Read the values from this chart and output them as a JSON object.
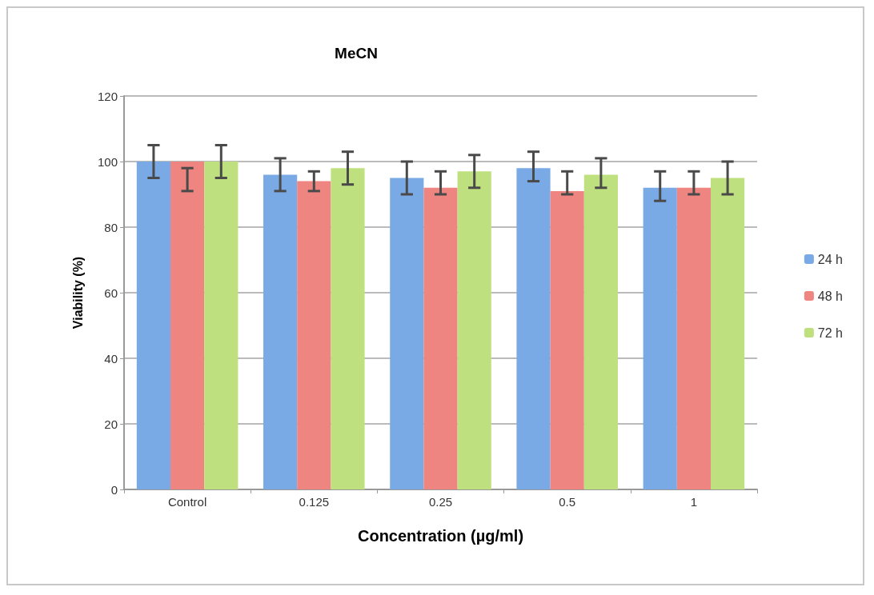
{
  "chart_data": {
    "type": "bar",
    "title": "MeCN",
    "xlabel": "Concentration (µg/ml)",
    "ylabel": "Viability (%)",
    "categories": [
      "Control",
      "0.125",
      "0.25",
      "0.5",
      "1"
    ],
    "series": [
      {
        "name": "24 h",
        "color": "#7aaae6",
        "values": [
          100,
          96,
          95,
          98,
          92
        ],
        "errors": [
          [
            95,
            105
          ],
          [
            91,
            101
          ],
          [
            90,
            100
          ],
          [
            94,
            103
          ],
          [
            88,
            97
          ]
        ]
      },
      {
        "name": "48 h",
        "color": "#ee8580",
        "values": [
          100,
          94,
          92,
          91,
          92
        ],
        "errors": [
          [
            91,
            98
          ],
          [
            91,
            97
          ],
          [
            90,
            97
          ],
          [
            90,
            97
          ],
          [
            90,
            97
          ]
        ]
      },
      {
        "name": "72 h",
        "color": "#bfe07e",
        "values": [
          100,
          98,
          97,
          96,
          95
        ],
        "errors": [
          [
            95,
            105
          ],
          [
            93,
            103
          ],
          [
            92,
            102
          ],
          [
            92,
            101
          ],
          [
            90,
            100
          ]
        ]
      }
    ],
    "ylim": [
      0,
      120
    ],
    "yticks": [
      0,
      20,
      40,
      60,
      80,
      100,
      120
    ],
    "grid": "y",
    "legend": "right"
  }
}
